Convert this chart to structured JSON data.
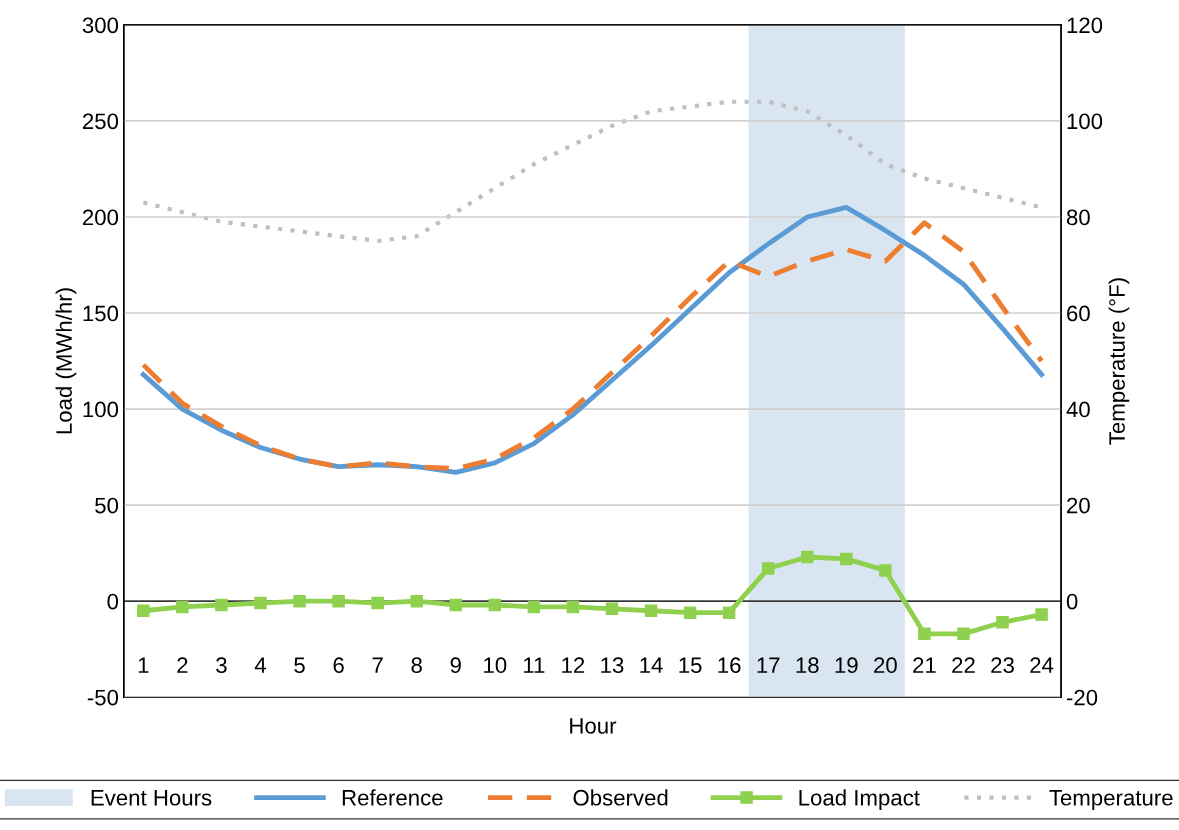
{
  "chart_data": {
    "type": "line",
    "x": [
      1,
      2,
      3,
      4,
      5,
      6,
      7,
      8,
      9,
      10,
      11,
      12,
      13,
      14,
      15,
      16,
      17,
      18,
      19,
      20,
      21,
      22,
      23,
      24
    ],
    "xlabel": "Hour",
    "ylabel": "Load (MWh/hr)",
    "y2label": "Temperature (°F)",
    "xlim": [
      0.5,
      24.5
    ],
    "xticks": [
      1,
      2,
      3,
      4,
      5,
      6,
      7,
      8,
      9,
      10,
      11,
      12,
      13,
      14,
      15,
      16,
      17,
      18,
      19,
      20,
      21,
      22,
      23,
      24
    ],
    "ylim": [
      -50,
      300
    ],
    "yticks": [
      -50,
      0,
      50,
      100,
      150,
      200,
      250,
      300
    ],
    "y2lim": [
      -20,
      120
    ],
    "y2ticks": [
      -20,
      0,
      20,
      40,
      60,
      80,
      100,
      120
    ],
    "grid": "y",
    "legend": "bottom",
    "bands": [
      {
        "axis": "x",
        "from": 16.5,
        "to": 20.5,
        "label": "Event Hours",
        "color": "#dae5f2"
      }
    ],
    "series": [
      {
        "name": "Reference",
        "color": "#5b9bd5",
        "line_style": "solid",
        "marker": "none",
        "values": [
          118,
          100,
          89,
          80,
          74,
          70,
          71,
          70,
          67,
          72,
          82,
          97,
          115,
          133,
          152,
          171,
          186,
          200,
          205,
          193,
          180,
          165,
          142,
          118
        ]
      },
      {
        "name": "Observed",
        "color": "#ed7d31",
        "line_style": "dashed",
        "marker": "none",
        "values": [
          123,
          103,
          91,
          81,
          74,
          70,
          72,
          70,
          69,
          74,
          85,
          100,
          119,
          138,
          158,
          177,
          169,
          177,
          183,
          177,
          197,
          182,
          153,
          125
        ]
      },
      {
        "name": "Load Impact",
        "color": "#8fd14f",
        "line_style": "solid",
        "marker": "square",
        "values": [
          -5,
          -3,
          -2,
          -1,
          0,
          0,
          -1,
          0,
          -2,
          -2,
          -3,
          -3,
          -4,
          -5,
          -6,
          -6,
          17,
          23,
          22,
          16,
          -17,
          -17,
          -11,
          -7
        ]
      },
      {
        "name": "Temperature",
        "color": "#bfbfbf",
        "line_style": "dotted",
        "marker": "none",
        "axis": "y2",
        "values": [
          83,
          81,
          79,
          78,
          77,
          76,
          75,
          76,
          81,
          86,
          91,
          95,
          99,
          102,
          103,
          104,
          104,
          102,
          97,
          91,
          88,
          86,
          84,
          82
        ]
      }
    ]
  }
}
